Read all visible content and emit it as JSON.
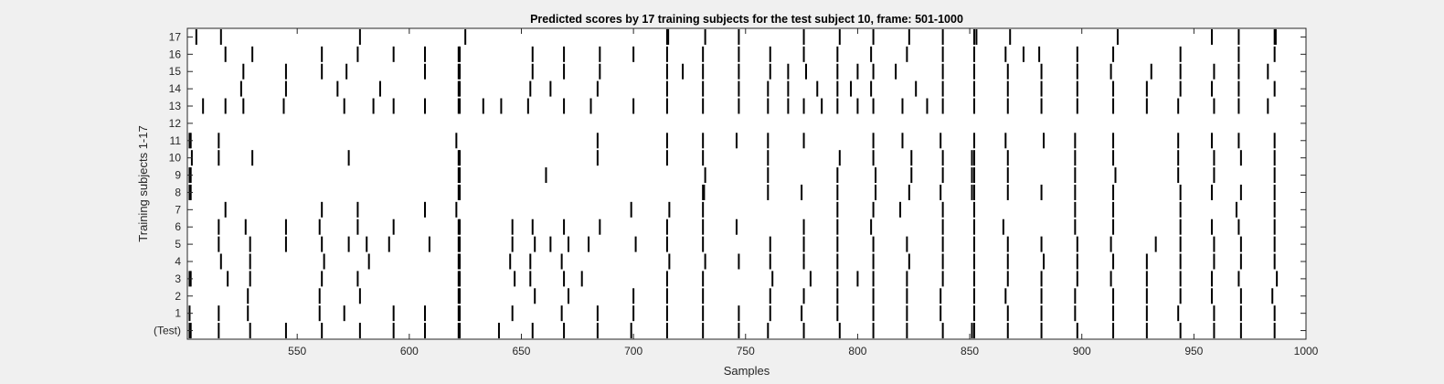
{
  "chart_data": {
    "type": "raster",
    "title": "Predicted scores by 17 training subjects for the test subject 10, frame: 501-1000",
    "xlabel": "Samples",
    "ylabel": "Training subjects 1-17",
    "xlim": [
      501,
      1000
    ],
    "xticks": [
      550,
      600,
      650,
      700,
      750,
      800,
      850,
      900,
      950,
      1000
    ],
    "yticks": [
      "(Test)",
      "1",
      "2",
      "3",
      "4",
      "5",
      "6",
      "7",
      "8",
      "9",
      "10",
      "11",
      "12",
      "13",
      "14",
      "15",
      "16",
      "17"
    ],
    "grid": false,
    "colors": {
      "background": "#f0f0f0",
      "axes": "#ffffff",
      "spike": "#000000",
      "text": "#262626"
    },
    "rows": [
      {
        "label": "(Test)",
        "events": [
          502,
          502.5,
          515,
          529,
          545,
          561,
          578,
          593,
          607,
          622,
          622.5,
          640,
          655,
          669,
          684,
          699,
          715,
          731,
          747,
          760,
          776,
          792,
          807,
          822,
          838,
          851,
          852,
          867,
          882,
          898,
          914,
          929,
          944,
          959,
          971,
          986
        ]
      },
      {
        "label": "1",
        "events": [
          502,
          515,
          528,
          560,
          571,
          593,
          607,
          622,
          622.5,
          646,
          668,
          684,
          700,
          715,
          731,
          747,
          761,
          775,
          791,
          807,
          822,
          837,
          852,
          867,
          882,
          897,
          914,
          929,
          943,
          959,
          971,
          986
        ]
      },
      {
        "label": "2",
        "events": [
          528,
          560,
          578,
          622,
          622.5,
          656,
          671,
          700,
          715,
          731,
          761,
          776,
          791,
          807,
          822,
          837,
          852,
          866,
          882,
          897,
          914,
          929,
          944,
          958,
          971,
          985
        ]
      },
      {
        "label": "3",
        "events": [
          502,
          502.5,
          519,
          529,
          561,
          577,
          622,
          622.5,
          647,
          654,
          669,
          677,
          715,
          731,
          762,
          779,
          791,
          800,
          807,
          822,
          838,
          852,
          867,
          882,
          898,
          913,
          929,
          944,
          958,
          970,
          987
        ]
      },
      {
        "label": "4",
        "events": [
          516,
          529,
          562,
          582,
          622,
          622.5,
          645,
          654,
          668,
          716,
          732,
          747,
          761,
          776,
          791,
          807,
          823,
          838,
          852,
          867,
          883,
          898,
          914,
          929,
          944,
          959,
          971,
          986
        ]
      },
      {
        "label": "5",
        "events": [
          515,
          529,
          545,
          561,
          573,
          581,
          591,
          609,
          622,
          622.5,
          646,
          656,
          663,
          671,
          680,
          701,
          715,
          731,
          761,
          776,
          791,
          807,
          822,
          838,
          852,
          867,
          882,
          898,
          913,
          933,
          944,
          959,
          971,
          986
        ]
      },
      {
        "label": "6",
        "events": [
          515,
          527,
          545,
          560,
          577,
          593,
          622,
          622.5,
          646,
          655,
          669,
          685,
          715,
          731,
          746,
          776,
          791,
          806,
          838,
          852,
          865,
          897,
          914,
          944,
          958,
          970,
          986
        ]
      },
      {
        "label": "7",
        "events": [
          518,
          561,
          577,
          607,
          621,
          699,
          716,
          731,
          791,
          807,
          819,
          838,
          852,
          897,
          914,
          944,
          969,
          986
        ]
      },
      {
        "label": "8",
        "events": [
          502,
          502.5,
          622,
          622.5,
          731,
          731.5,
          760,
          775,
          791,
          808,
          823,
          837,
          851,
          852,
          867,
          882,
          897,
          914,
          944,
          958,
          971,
          986
        ]
      },
      {
        "label": "9",
        "events": [
          502,
          502.5,
          622,
          622.5,
          661,
          732,
          760,
          791,
          808,
          824,
          838,
          851,
          852,
          867,
          897,
          915,
          943,
          959,
          986
        ]
      },
      {
        "label": "10",
        "events": [
          503,
          515,
          530,
          573,
          622,
          622.5,
          684,
          715,
          731,
          760,
          792,
          807,
          824,
          838,
          851,
          852,
          867,
          897,
          914,
          943,
          959,
          971,
          986
        ]
      },
      {
        "label": "11",
        "events": [
          502,
          502.5,
          515,
          621,
          684,
          715,
          731,
          746,
          760,
          776,
          807,
          820,
          837,
          852,
          866,
          883,
          897,
          914,
          943,
          958,
          970,
          986
        ]
      },
      {
        "label": "12",
        "events": []
      },
      {
        "label": "13",
        "events": [
          508,
          518,
          526,
          544,
          571,
          584,
          593,
          607,
          622,
          622.5,
          633,
          641,
          653,
          669,
          681,
          700,
          715,
          731,
          747,
          760,
          769,
          776,
          784,
          791,
          800,
          807,
          820,
          831,
          838,
          852,
          867,
          882,
          898,
          914,
          929,
          943,
          959,
          970,
          983
        ]
      },
      {
        "label": "14",
        "events": [
          525,
          545,
          568,
          587,
          622,
          622.5,
          654,
          663,
          684,
          715,
          731,
          747,
          760,
          769,
          782,
          791,
          797,
          806,
          826,
          838,
          852,
          867,
          882,
          898,
          914,
          929,
          944,
          958,
          970,
          986
        ]
      },
      {
        "label": "15",
        "events": [
          526,
          545,
          561,
          572,
          607,
          622,
          622.5,
          655,
          669,
          685,
          715,
          722,
          731,
          747,
          761,
          769,
          777,
          791,
          800,
          807,
          817,
          838,
          852,
          867,
          882,
          898,
          913,
          931,
          944,
          959,
          970,
          983
        ]
      },
      {
        "label": "16",
        "events": [
          518,
          530,
          561,
          577,
          593,
          607,
          622,
          622.5,
          655,
          669,
          685,
          700,
          715,
          731,
          747,
          761,
          776,
          791,
          806,
          822,
          838,
          852,
          866,
          874,
          881,
          898,
          914,
          944,
          970,
          986
        ]
      },
      {
        "label": "17",
        "events": [
          505,
          516,
          578,
          625,
          715,
          715.5,
          732,
          747,
          776,
          792,
          807,
          823,
          838,
          852,
          853,
          868,
          916,
          958,
          970,
          986,
          986.5
        ]
      }
    ]
  }
}
